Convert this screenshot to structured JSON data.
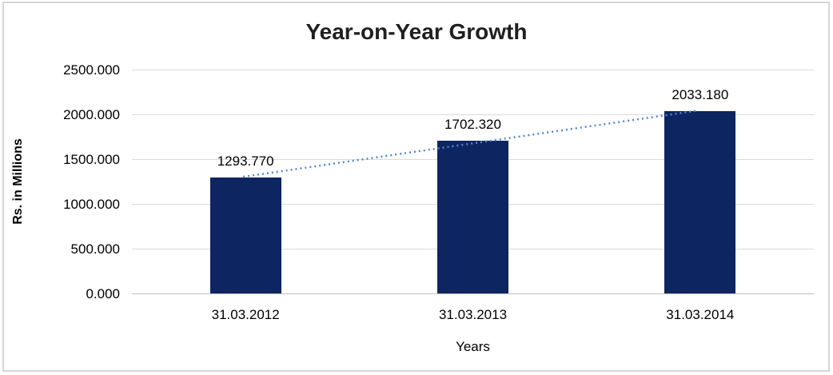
{
  "chart_data": {
    "type": "bar",
    "title": "Year-on-Year Growth",
    "xlabel": "Years",
    "ylabel": "Rs. in Millions",
    "categories": [
      "31.03.2012",
      "31.03.2013",
      "31.03.2014"
    ],
    "values": [
      1293.77,
      1702.32,
      2033.18
    ],
    "data_labels": [
      "1293.770",
      "1702.320",
      "2033.180"
    ],
    "y_ticks": [
      "2500.000",
      "2000.000",
      "1500.000",
      "1000.000",
      "500.000",
      "0.000"
    ],
    "ylim": [
      0,
      2500
    ],
    "grid": "horizontal gridlines on",
    "legend": "none",
    "bar_color": "#0d2560",
    "trendline": {
      "type": "linear",
      "style": "dotted",
      "color": "#5589cc"
    },
    "gridline_color": "#dadada",
    "axis_line_color": "#bfbfbf"
  }
}
